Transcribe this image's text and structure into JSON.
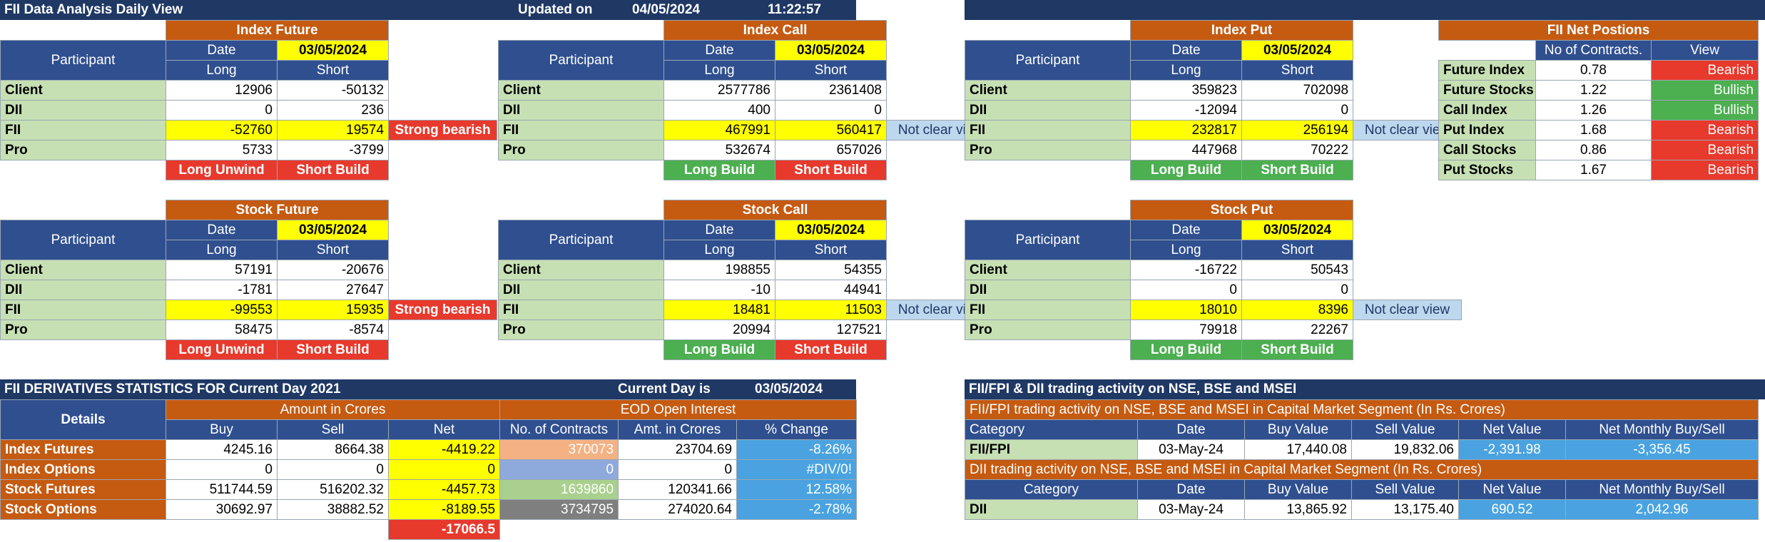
{
  "header": {
    "title": "FII Data Analysis Daily View",
    "updated_label": "Updated on",
    "updated_date": "04/05/2024",
    "updated_time": "11:22:57"
  },
  "labels": {
    "participant": "Participant",
    "date": "Date",
    "long": "Long",
    "short": "Short",
    "client": "Client",
    "dii": "DII",
    "fii": "FII",
    "pro": "Pro"
  },
  "index_future": {
    "title": "Index Future",
    "date": "03/05/2024",
    "rows": [
      [
        "12906",
        "-50132"
      ],
      [
        "0",
        "236"
      ],
      [
        "-52760",
        "19574"
      ],
      [
        "5733",
        "-3799"
      ]
    ],
    "view": "Strong bearish",
    "long_status": "Long Unwind",
    "short_status": "Short Build"
  },
  "index_call": {
    "title": "Index Call",
    "date": "03/05/2024",
    "rows": [
      [
        "2577786",
        "2361408"
      ],
      [
        "400",
        "0"
      ],
      [
        "467991",
        "560417"
      ],
      [
        "532674",
        "657026"
      ]
    ],
    "view": "Not clear view",
    "long_status": "Long Build",
    "short_status": "Short Build"
  },
  "index_put": {
    "title": "Index Put",
    "date": "03/05/2024",
    "rows": [
      [
        "359823",
        "702098"
      ],
      [
        "-12094",
        "0"
      ],
      [
        "232817",
        "256194"
      ],
      [
        "447968",
        "70222"
      ]
    ],
    "view": "Not clear view",
    "long_status": "Long Build",
    "short_status": "Short Build"
  },
  "stock_future": {
    "title": "Stock Future",
    "date": "03/05/2024",
    "rows": [
      [
        "57191",
        "-20676"
      ],
      [
        "-1781",
        "27647"
      ],
      [
        "-99553",
        "15935"
      ],
      [
        "58475",
        "-8574"
      ]
    ],
    "view": "Strong bearish",
    "long_status": "Long Unwind",
    "short_status": "Short Build"
  },
  "stock_call": {
    "title": "Stock Call",
    "date": "03/05/2024",
    "rows": [
      [
        "198855",
        "54355"
      ],
      [
        "-10",
        "44941"
      ],
      [
        "18481",
        "11503"
      ],
      [
        "20994",
        "127521"
      ]
    ],
    "view": "Not clear view",
    "long_status": "Long Build",
    "short_status": "Short Build"
  },
  "stock_put": {
    "title": "Stock Put",
    "date": "03/05/2024",
    "rows": [
      [
        "-16722",
        "50543"
      ],
      [
        "0",
        "0"
      ],
      [
        "18010",
        "8396"
      ],
      [
        "79918",
        "22267"
      ]
    ],
    "view": "Not clear view",
    "long_status": "Long Build",
    "short_status": "Short Build"
  },
  "net_positions": {
    "title": "FII Net Postions",
    "col_contracts": "No of Contracts.",
    "col_view": "View",
    "rows": [
      {
        "name": "Future Index",
        "value": "0.78",
        "view": "Bearish",
        "status": "bear"
      },
      {
        "name": "Future Stocks",
        "value": "1.22",
        "view": "Bullish",
        "status": "bull"
      },
      {
        "name": "Call Index",
        "value": "1.26",
        "view": "Bullish",
        "status": "bull"
      },
      {
        "name": "Put Index",
        "value": "1.68",
        "view": "Bearish",
        "status": "bear"
      },
      {
        "name": "Call Stocks",
        "value": "0.86",
        "view": "Bearish",
        "status": "bear"
      },
      {
        "name": "Put Stocks",
        "value": "1.67",
        "view": "Bearish",
        "status": "bear"
      }
    ]
  },
  "derivatives": {
    "title": "FII DERIVATIVES STATISTICS FOR Current Day 2021",
    "current_day_label": "Current Day is",
    "current_day": "03/05/2024",
    "details": "Details",
    "amount_hdr": "Amount in Crores",
    "eod_hdr": "EOD Open Interest",
    "cols": [
      "Buy",
      "Sell",
      "Net",
      "No. of Contracts",
      "Amt. in Crores",
      "% Change"
    ],
    "rows": [
      {
        "name": "Index Futures",
        "buy": "4245.16",
        "sell": "8664.38",
        "net": "-4419.22",
        "contracts": "370073",
        "amt": "23704.69",
        "pct": "-8.26%"
      },
      {
        "name": "Index Options",
        "buy": "0",
        "sell": "0",
        "net": "0",
        "contracts": "0",
        "amt": "0",
        "pct": "#DIV/0!"
      },
      {
        "name": "Stock Futures",
        "buy": "511744.59",
        "sell": "516202.32",
        "net": "-4457.73",
        "contracts": "1639860",
        "amt": "120341.66",
        "pct": "12.58%"
      },
      {
        "name": "Stock Options",
        "buy": "30692.97",
        "sell": "38882.52",
        "net": "-8189.55",
        "contracts": "3734795",
        "amt": "274020.64",
        "pct": "-2.78%"
      }
    ],
    "total_net": "-17066.5"
  },
  "activity": {
    "title": "FII/FPI & DII trading activity on NSE, BSE and MSEI",
    "fii_sub": "FII/FPI trading activity on NSE, BSE and MSEI in Capital Market Segment (In Rs. Crores)",
    "dii_sub": "DII trading activity on NSE, BSE and MSEI in Capital Market Segment (In Rs. Crores)",
    "cols": [
      "Category",
      "Date",
      "Buy Value",
      "Sell Value",
      "Net Value",
      "Net Monthly Buy/Sell"
    ],
    "fii": {
      "category": "FII/FPI",
      "date": "03-May-24",
      "buy": "17,440.08",
      "sell": "19,832.06",
      "net": "-2,391.98",
      "monthly": "-3,356.45"
    },
    "dii": {
      "category": "DII",
      "date": "03-May-24",
      "buy": "13,865.92",
      "sell": "13,175.40",
      "net": "690.52",
      "monthly": "2,042.96"
    }
  }
}
